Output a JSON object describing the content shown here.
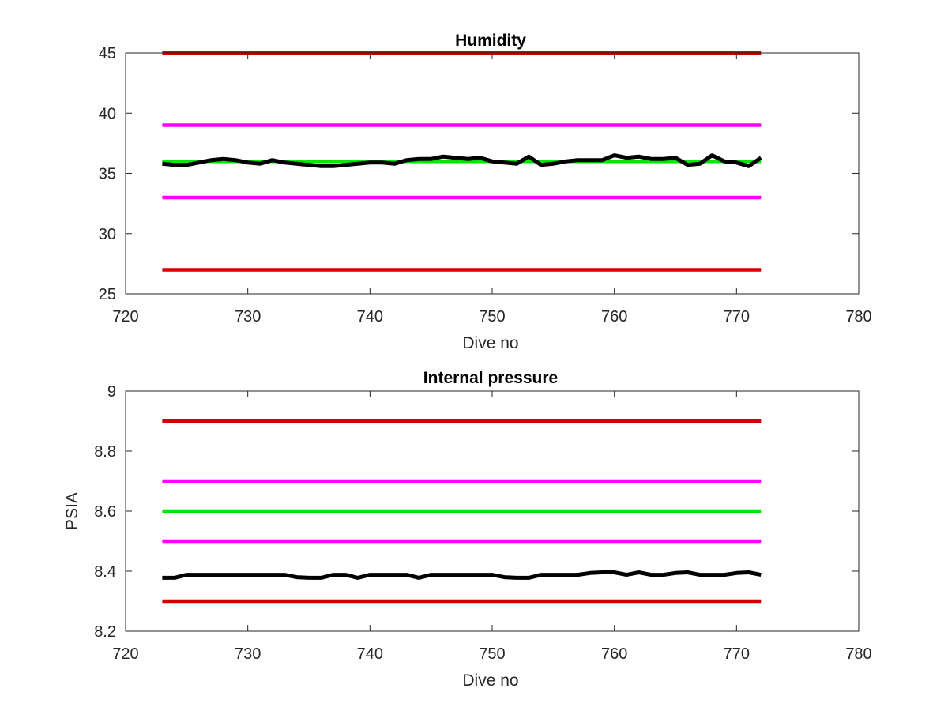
{
  "chart_data": [
    {
      "type": "line",
      "title": "Humidity",
      "xlabel": "Dive no",
      "ylabel": "",
      "xlim": [
        720,
        780
      ],
      "ylim": [
        25,
        45
      ],
      "xticks": [
        "720",
        "730",
        "740",
        "750",
        "760",
        "770",
        "780"
      ],
      "yticks": [
        "25",
        "30",
        "35",
        "40",
        "45"
      ],
      "grid": false,
      "series": [
        {
          "color": "#d40000",
          "x": [
            723,
            772
          ],
          "values": [
            45,
            45
          ]
        },
        {
          "color": "#ff00ff",
          "x": [
            723,
            772
          ],
          "values": [
            39,
            39
          ]
        },
        {
          "color": "#00e600",
          "x": [
            723,
            772
          ],
          "values": [
            36,
            36
          ]
        },
        {
          "color": "#ff00ff",
          "x": [
            723,
            772
          ],
          "values": [
            33,
            33
          ]
        },
        {
          "color": "#d40000",
          "x": [
            723,
            772
          ],
          "values": [
            27,
            27
          ]
        },
        {
          "color": "#000000",
          "x": [
            723,
            724,
            725,
            726,
            727,
            728,
            729,
            730,
            731,
            732,
            733,
            734,
            735,
            736,
            737,
            738,
            739,
            740,
            741,
            742,
            743,
            744,
            745,
            746,
            747,
            748,
            749,
            750,
            751,
            752,
            753,
            754,
            755,
            756,
            757,
            758,
            759,
            760,
            761,
            762,
            763,
            764,
            765,
            766,
            767,
            768,
            769,
            770,
            771,
            772
          ],
          "values": [
            35.8,
            35.7,
            35.7,
            35.9,
            36.1,
            36.2,
            36.1,
            35.9,
            35.8,
            36.1,
            35.9,
            35.8,
            35.7,
            35.6,
            35.6,
            35.7,
            35.8,
            35.9,
            35.9,
            35.8,
            36.1,
            36.2,
            36.2,
            36.4,
            36.3,
            36.2,
            36.3,
            36.0,
            35.9,
            35.8,
            36.4,
            35.7,
            35.8,
            36.0,
            36.1,
            36.1,
            36.1,
            36.5,
            36.3,
            36.4,
            36.2,
            36.2,
            36.3,
            35.7,
            35.8,
            36.5,
            36.0,
            35.9,
            35.6,
            36.3
          ]
        }
      ]
    },
    {
      "type": "line",
      "title": "Internal pressure",
      "xlabel": "Dive no",
      "ylabel": "PSIA",
      "xlim": [
        720,
        780
      ],
      "ylim": [
        8.2,
        9.0
      ],
      "xticks": [
        "720",
        "730",
        "740",
        "750",
        "760",
        "770",
        "780"
      ],
      "yticks": [
        "8.2",
        "8.4",
        "8.6",
        "8.8",
        "9"
      ],
      "grid": false,
      "series": [
        {
          "color": "#d40000",
          "x": [
            723,
            772
          ],
          "values": [
            8.9,
            8.9
          ]
        },
        {
          "color": "#ff00ff",
          "x": [
            723,
            772
          ],
          "values": [
            8.7,
            8.7
          ]
        },
        {
          "color": "#00e600",
          "x": [
            723,
            772
          ],
          "values": [
            8.6,
            8.6
          ]
        },
        {
          "color": "#ff00ff",
          "x": [
            723,
            772
          ],
          "values": [
            8.5,
            8.5
          ]
        },
        {
          "color": "#d40000",
          "x": [
            723,
            772
          ],
          "values": [
            8.3,
            8.3
          ]
        },
        {
          "color": "#000000",
          "x": [
            723,
            724,
            725,
            726,
            727,
            728,
            729,
            730,
            731,
            732,
            733,
            734,
            735,
            736,
            737,
            738,
            739,
            740,
            741,
            742,
            743,
            744,
            745,
            746,
            747,
            748,
            749,
            750,
            751,
            752,
            753,
            754,
            755,
            756,
            757,
            758,
            759,
            760,
            761,
            762,
            763,
            764,
            765,
            766,
            767,
            768,
            769,
            770,
            771,
            772
          ],
          "values": [
            8.378,
            8.378,
            8.388,
            8.388,
            8.388,
            8.388,
            8.388,
            8.388,
            8.388,
            8.388,
            8.388,
            8.38,
            8.378,
            8.378,
            8.388,
            8.388,
            8.378,
            8.388,
            8.388,
            8.388,
            8.388,
            8.378,
            8.388,
            8.388,
            8.388,
            8.388,
            8.388,
            8.388,
            8.38,
            8.378,
            8.378,
            8.388,
            8.388,
            8.388,
            8.388,
            8.394,
            8.396,
            8.396,
            8.388,
            8.396,
            8.388,
            8.388,
            8.394,
            8.396,
            8.388,
            8.388,
            8.388,
            8.394,
            8.396,
            8.388
          ]
        }
      ]
    }
  ]
}
